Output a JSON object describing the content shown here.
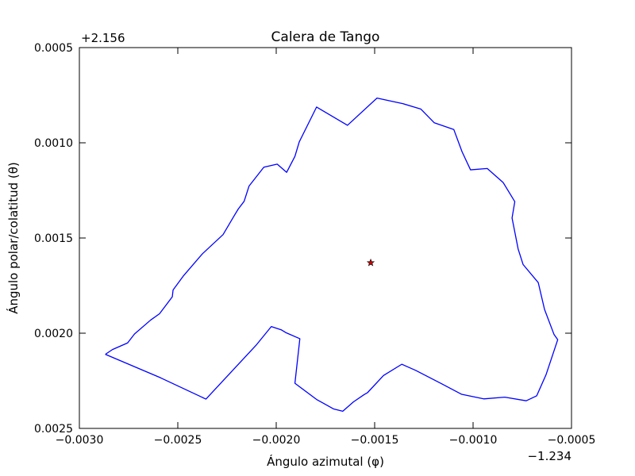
{
  "chart_data": {
    "type": "line",
    "title": "Calera de Tango",
    "xlabel": "Ángulo azimutal (φ)",
    "ylabel": "Ángulo polar/colatitud (θ)",
    "x_offset_label": "−1.234",
    "y_offset_label": "+2.156",
    "xlim": [
      -0.003,
      -0.0005
    ],
    "ylim": [
      0.0005,
      0.0025
    ],
    "y_inverted": true,
    "x_ticks": [
      -0.003,
      -0.0025,
      -0.002,
      -0.0015,
      -0.001,
      -0.0005
    ],
    "x_tick_labels": [
      "−0.0030",
      "−0.0025",
      "−0.0020",
      "−0.0015",
      "−0.0010",
      "−0.0005"
    ],
    "y_ticks": [
      0.0005,
      0.001,
      0.0015,
      0.002,
      0.0025
    ],
    "y_tick_labels": [
      "0.0005",
      "0.0010",
      "0.0015",
      "0.0020",
      "0.0025"
    ],
    "grid": false,
    "series": [
      {
        "type": "line",
        "color": "#0000ff",
        "closed": true,
        "points": [
          [
            -0.002868,
            0.002111
          ],
          [
            -0.002832,
            0.002086
          ],
          [
            -0.002755,
            0.002051
          ],
          [
            -0.00272,
            0.002004
          ],
          [
            -0.002638,
            0.001931
          ],
          [
            -0.002593,
            0.001898
          ],
          [
            -0.002528,
            0.001809
          ],
          [
            -0.002524,
            0.001773
          ],
          [
            -0.00247,
            0.001697
          ],
          [
            -0.002375,
            0.001583
          ],
          [
            -0.00227,
            0.001482
          ],
          [
            -0.002213,
            0.001382
          ],
          [
            -0.002193,
            0.001348
          ],
          [
            -0.002163,
            0.001307
          ],
          [
            -0.002138,
            0.001227
          ],
          [
            -0.002063,
            0.001128
          ],
          [
            -0.001995,
            0.001112
          ],
          [
            -0.001947,
            0.001155
          ],
          [
            -0.001905,
            0.001071
          ],
          [
            -0.001883,
            0.000995
          ],
          [
            -0.001795,
            0.000812
          ],
          [
            -0.001638,
            0.000908
          ],
          [
            -0.001488,
            0.000765
          ],
          [
            -0.001355,
            0.000795
          ],
          [
            -0.001265,
            0.000823
          ],
          [
            -0.001197,
            0.000895
          ],
          [
            -0.001098,
            0.00093
          ],
          [
            -0.001056,
            0.001047
          ],
          [
            -0.001013,
            0.001142
          ],
          [
            -0.000928,
            0.001135
          ],
          [
            -0.000847,
            0.001209
          ],
          [
            -0.000788,
            0.001309
          ],
          [
            -0.000802,
            0.001395
          ],
          [
            -0.000771,
            0.001558
          ],
          [
            -0.000746,
            0.001639
          ],
          [
            -0.000669,
            0.001734
          ],
          [
            -0.000637,
            0.001875
          ],
          [
            -0.000589,
            0.002006
          ],
          [
            -0.00057,
            0.002034
          ],
          [
            -0.000629,
            0.002217
          ],
          [
            -0.000677,
            0.002329
          ],
          [
            -0.00073,
            0.002355
          ],
          [
            -0.000839,
            0.002336
          ],
          [
            -0.000946,
            0.002345
          ],
          [
            -0.001058,
            0.002321
          ],
          [
            -0.001163,
            0.002264
          ],
          [
            -0.001292,
            0.002195
          ],
          [
            -0.001362,
            0.002163
          ],
          [
            -0.001455,
            0.002222
          ],
          [
            -0.001536,
            0.002312
          ],
          [
            -0.001553,
            0.002322
          ],
          [
            -0.001608,
            0.002361
          ],
          [
            -0.001662,
            0.00241
          ],
          [
            -0.001708,
            0.002398
          ],
          [
            -0.001795,
            0.002348
          ],
          [
            -0.001905,
            0.002263
          ],
          [
            -0.00188,
            0.002029
          ],
          [
            -0.001949,
            0.001998
          ],
          [
            -0.001973,
            0.001983
          ],
          [
            -0.002025,
            0.001965
          ],
          [
            -0.002103,
            0.002064
          ],
          [
            -0.002357,
            0.002346
          ],
          [
            -0.002588,
            0.002234
          ],
          [
            -0.002868,
            0.002111
          ]
        ]
      },
      {
        "type": "scatter",
        "marker": "star",
        "color": "#cc0000",
        "points": [
          [
            -0.00152,
            0.00163
          ]
        ]
      }
    ]
  }
}
